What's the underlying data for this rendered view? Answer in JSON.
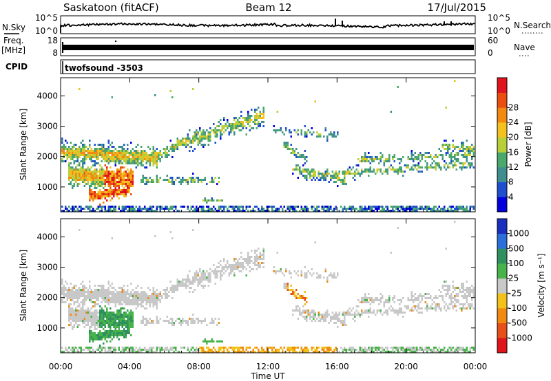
{
  "header": {
    "station": "Saskatoon (fitACF)",
    "beam": "Beam 12",
    "date": "17/Jul/2015"
  },
  "noise_panel": {
    "left_label": "N.Sky",
    "left_ticks": [
      "10^5",
      "10^0"
    ],
    "right_ticks": [
      "10^5",
      "10^0"
    ],
    "right_label": "N.Search"
  },
  "freq_panel": {
    "left_label_1": "Freq.",
    "left_label_2": "[MHz]",
    "left_ticks": [
      "18",
      "8"
    ],
    "right_ticks": [
      "60",
      "0"
    ],
    "right_label": "Nave"
  },
  "cpid_panel": {
    "label": "CPID",
    "program": "twofsound  -3503"
  },
  "chart_data": [
    {
      "type": "heatmap",
      "name": "power",
      "ylabel": "Slant Range [km]",
      "yticks": [
        1000,
        2000,
        3000,
        4000
      ],
      "ylim": [
        180,
        4600
      ],
      "xlim_hours": [
        0,
        24
      ],
      "colorbar_label": "Power [dB]",
      "colorbar_ticks": [
        4,
        8,
        12,
        16,
        20,
        24,
        28
      ],
      "colorbar_range": [
        0,
        32
      ],
      "colors": [
        "#0000dd",
        "#1f4fd0",
        "#3f8f8f",
        "#49a86b",
        "#b9cf3a",
        "#f4c11f",
        "#f28a12",
        "#ec4e10",
        "#e0141c"
      ]
    },
    {
      "type": "heatmap",
      "name": "velocity",
      "ylabel": "Slant Range [km]",
      "yticks": [
        1000,
        2000,
        3000,
        4000
      ],
      "ylim": [
        180,
        4600
      ],
      "xlim_hours": [
        0,
        24
      ],
      "colorbar_label": "Velocity [m s⁻¹]",
      "colorbar_ticks": [
        "1000",
        "500",
        "100",
        "25",
        "-25",
        "-100",
        "-500",
        "-1000"
      ],
      "colors": [
        "#1b2fbf",
        "#2b6fd8",
        "#2f8f5f",
        "#47b34a",
        "#c8c8c8",
        "#f2c21a",
        "#f08a10",
        "#e8501a",
        "#e0141c"
      ]
    }
  ],
  "x_axis": {
    "ticks": [
      "00:00",
      "04:00",
      "08:00",
      "12:00",
      "16:00",
      "20:00",
      "00:00"
    ],
    "label": "Time UT"
  }
}
